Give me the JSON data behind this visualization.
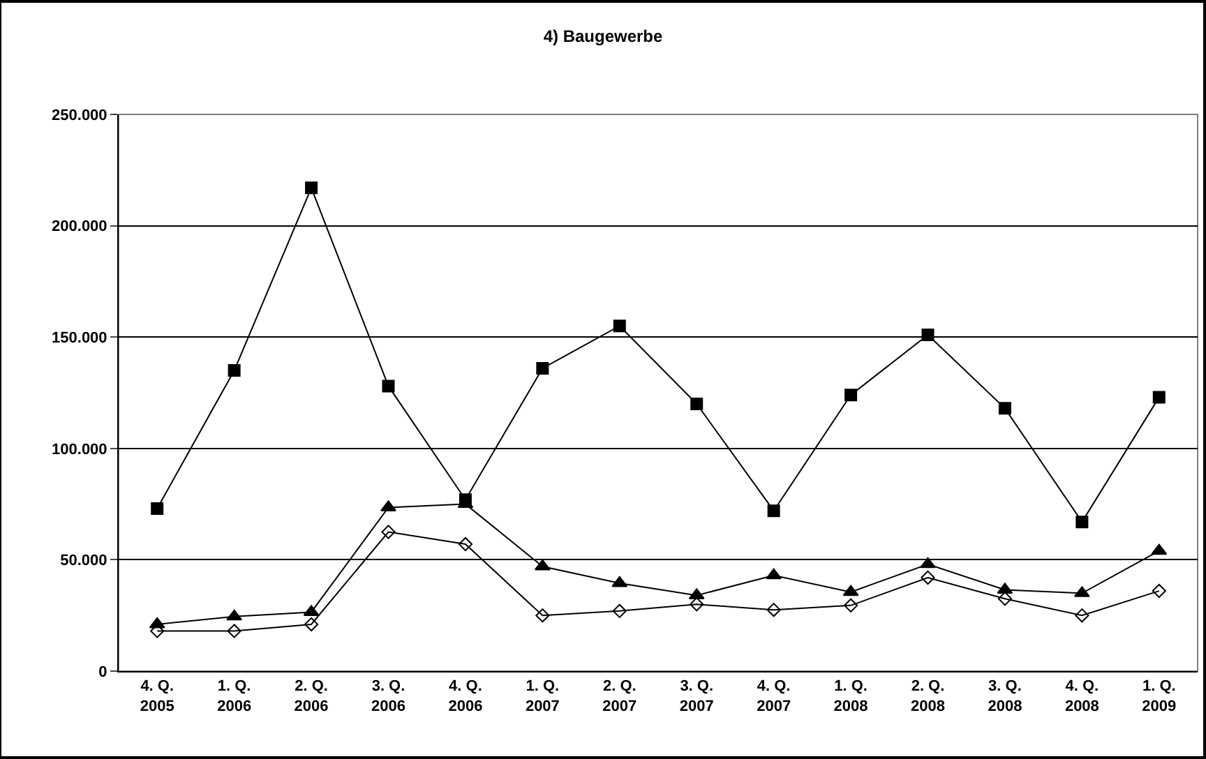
{
  "chart_data": {
    "type": "line",
    "title": "4) Baugewerbe",
    "categories": [
      "4. Q.\n2005",
      "1. Q.\n2006",
      "2. Q.\n2006",
      "3. Q.\n2006",
      "4. Q.\n2006",
      "1. Q.\n2007",
      "2. Q.\n2007",
      "3. Q.\n2007",
      "4. Q.\n2007",
      "1. Q.\n2008",
      "2. Q.\n2008",
      "3. Q.\n2008",
      "4. Q.\n2008",
      "1. Q.\n2009"
    ],
    "series": [
      {
        "color": "#000000",
        "marker": "square",
        "values": [
          73000,
          135000,
          217000,
          128000,
          77000,
          136000,
          155000,
          120000,
          72000,
          124000,
          151000,
          118000,
          67000,
          123000
        ]
      },
      {
        "color": "#000000",
        "marker": "triangle",
        "values": [
          21000,
          24500,
          26500,
          73500,
          75000,
          47000,
          39500,
          34000,
          43000,
          35500,
          48000,
          36500,
          35000,
          54000
        ]
      },
      {
        "color": "#000000",
        "marker": "diamond",
        "values": [
          18000,
          18000,
          21000,
          62500,
          57000,
          25000,
          27000,
          30000,
          27500,
          29500,
          42000,
          32500,
          25000,
          36000
        ]
      }
    ],
    "ylim": [
      0,
      250000
    ],
    "yticks": [
      {
        "value": 0,
        "label": "0"
      },
      {
        "value": 50000,
        "label": "50.000"
      },
      {
        "value": 100000,
        "label": "100.000"
      },
      {
        "value": 150000,
        "label": "150.000"
      },
      {
        "value": 200000,
        "label": "200.000"
      },
      {
        "value": 250000,
        "label": "250.000"
      }
    ],
    "grid": "y",
    "line_style": "solid"
  }
}
